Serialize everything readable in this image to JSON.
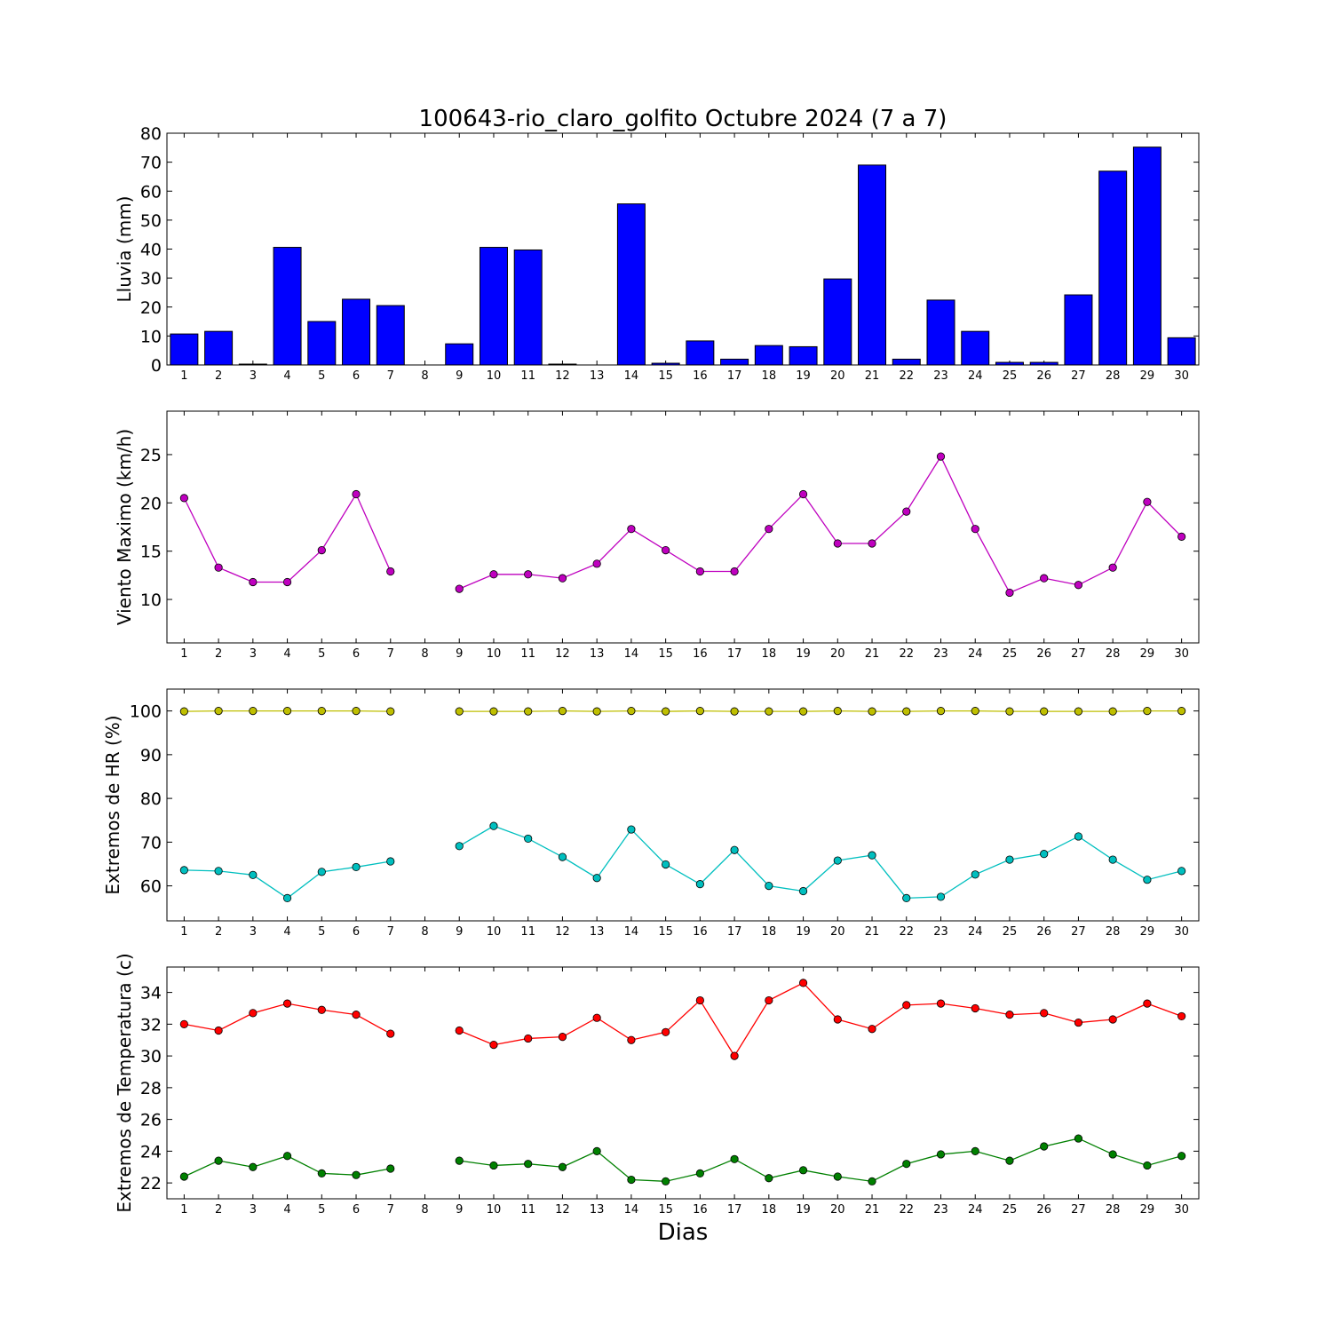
{
  "figure": {
    "title": "100643-rio_claro_golfito Octubre 2024  (7 a 7)",
    "xlabel": "Dias"
  },
  "chart_data": [
    {
      "type": "bar",
      "ylabel": "Lluvia (mm)",
      "ylim": [
        0,
        80
      ],
      "yticks": [
        0,
        10,
        20,
        30,
        40,
        50,
        60,
        70,
        80
      ],
      "grid": false,
      "bar_color": "#0000ff",
      "categories": [
        "1",
        "2",
        "3",
        "4",
        "5",
        "6",
        "7",
        "8",
        "9",
        "10",
        "11",
        "12",
        "13",
        "14",
        "15",
        "16",
        "17",
        "18",
        "19",
        "20",
        "21",
        "22",
        "23",
        "24",
        "25",
        "26",
        "27",
        "28",
        "29",
        "30"
      ],
      "values": [
        10.7,
        11.6,
        0.3,
        40.6,
        15.0,
        22.7,
        20.5,
        null,
        7.3,
        40.6,
        39.7,
        0.3,
        null,
        55.6,
        0.6,
        8.3,
        2.0,
        6.7,
        6.3,
        29.7,
        69.0,
        2.0,
        22.4,
        11.6,
        0.9,
        0.9,
        24.2,
        66.9,
        75.2,
        9.4
      ]
    },
    {
      "type": "line",
      "ylabel": "Viento Maximo (km/h)",
      "ylim": [
        5.5,
        29.5
      ],
      "yticks": [
        10,
        15,
        20,
        25
      ],
      "grid": false,
      "categories": [
        "1",
        "2",
        "3",
        "4",
        "5",
        "6",
        "7",
        "8",
        "9",
        "10",
        "11",
        "12",
        "13",
        "14",
        "15",
        "16",
        "17",
        "18",
        "19",
        "20",
        "21",
        "22",
        "23",
        "24",
        "25",
        "26",
        "27",
        "28",
        "29",
        "30"
      ],
      "series": [
        {
          "color": "#bf00bf",
          "values": [
            20.5,
            13.3,
            11.8,
            11.8,
            15.1,
            20.9,
            12.9,
            null,
            11.1,
            12.6,
            12.6,
            12.2,
            13.7,
            17.3,
            15.1,
            12.9,
            12.9,
            17.3,
            20.9,
            15.8,
            15.8,
            19.1,
            24.8,
            17.3,
            10.7,
            12.2,
            11.5,
            13.3,
            20.1,
            16.5
          ]
        }
      ]
    },
    {
      "type": "line",
      "ylabel": "Extremos de HR (%)",
      "ylim": [
        52,
        105
      ],
      "yticks": [
        60,
        70,
        80,
        90,
        100
      ],
      "grid": false,
      "categories": [
        "1",
        "2",
        "3",
        "4",
        "5",
        "6",
        "7",
        "8",
        "9",
        "10",
        "11",
        "12",
        "13",
        "14",
        "15",
        "16",
        "17",
        "18",
        "19",
        "20",
        "21",
        "22",
        "23",
        "24",
        "25",
        "26",
        "27",
        "28",
        "29",
        "30"
      ],
      "series": [
        {
          "color": "#bfbf00",
          "values": [
            99.9,
            100,
            100,
            100,
            100,
            100,
            99.9,
            null,
            99.9,
            99.9,
            99.9,
            100,
            99.9,
            100,
            99.9,
            100,
            99.9,
            99.9,
            99.9,
            100,
            99.9,
            99.9,
            100,
            100,
            99.9,
            99.9,
            99.9,
            99.9,
            100,
            100
          ]
        },
        {
          "color": "#00bfbf",
          "values": [
            63.6,
            63.4,
            62.5,
            57.2,
            63.2,
            64.3,
            65.6,
            null,
            69.1,
            73.7,
            70.8,
            66.6,
            61.8,
            72.9,
            64.9,
            60.4,
            68.2,
            60.0,
            58.8,
            65.8,
            67.0,
            57.2,
            57.5,
            62.6,
            66.0,
            67.3,
            71.3,
            66.0,
            61.4,
            63.4
          ]
        }
      ]
    },
    {
      "type": "line",
      "ylabel": "Extremos de Temperatura (c)",
      "ylim": [
        21,
        35.6
      ],
      "yticks": [
        22,
        24,
        26,
        28,
        30,
        32,
        34
      ],
      "grid": false,
      "categories": [
        "1",
        "2",
        "3",
        "4",
        "5",
        "6",
        "7",
        "8",
        "9",
        "10",
        "11",
        "12",
        "13",
        "14",
        "15",
        "16",
        "17",
        "18",
        "19",
        "20",
        "21",
        "22",
        "23",
        "24",
        "25",
        "26",
        "27",
        "28",
        "29",
        "30"
      ],
      "series": [
        {
          "color": "#ff0000",
          "values": [
            32.0,
            31.6,
            32.7,
            33.3,
            32.9,
            32.6,
            31.4,
            null,
            31.6,
            30.7,
            31.1,
            31.2,
            32.4,
            31.0,
            31.5,
            33.5,
            30.0,
            33.5,
            34.6,
            32.3,
            31.7,
            33.2,
            33.3,
            33.0,
            32.6,
            32.7,
            32.1,
            32.3,
            33.3,
            32.5
          ]
        },
        {
          "color": "#008000",
          "values": [
            22.4,
            23.4,
            23.0,
            23.7,
            22.6,
            22.5,
            22.9,
            null,
            23.4,
            23.1,
            23.2,
            23.0,
            24.0,
            22.2,
            22.1,
            22.6,
            23.5,
            22.3,
            22.8,
            22.4,
            22.1,
            23.2,
            23.8,
            24.0,
            23.4,
            24.3,
            24.8,
            23.8,
            23.1,
            23.7
          ]
        }
      ]
    }
  ]
}
